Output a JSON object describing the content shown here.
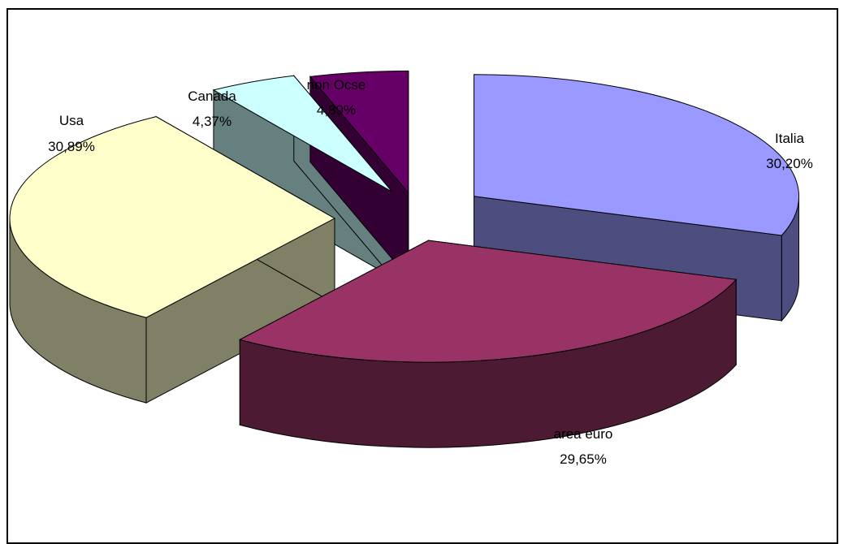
{
  "chart_data": {
    "type": "pie",
    "style": "3d-exploded",
    "title": "",
    "legend": "none",
    "slices": [
      {
        "name": "Italia",
        "value": 30.2,
        "label": "30,20%",
        "top_color": "#9999FF",
        "side_color": "#4D4D80"
      },
      {
        "name": "area euro",
        "value": 29.65,
        "label": "29,65%",
        "top_color": "#993366",
        "side_color": "#4D1A33"
      },
      {
        "name": "Usa",
        "value": 30.89,
        "label": "30,89%",
        "top_color": "#FFFFCC",
        "side_color": "#808066"
      },
      {
        "name": "Canada",
        "value": 4.37,
        "label": "4,37%",
        "top_color": "#CCFFFF",
        "side_color": "#668080"
      },
      {
        "name": "non Ocse",
        "value": 4.89,
        "label": "4,89%",
        "top_color": "#660066",
        "side_color": "#330033"
      }
    ]
  }
}
